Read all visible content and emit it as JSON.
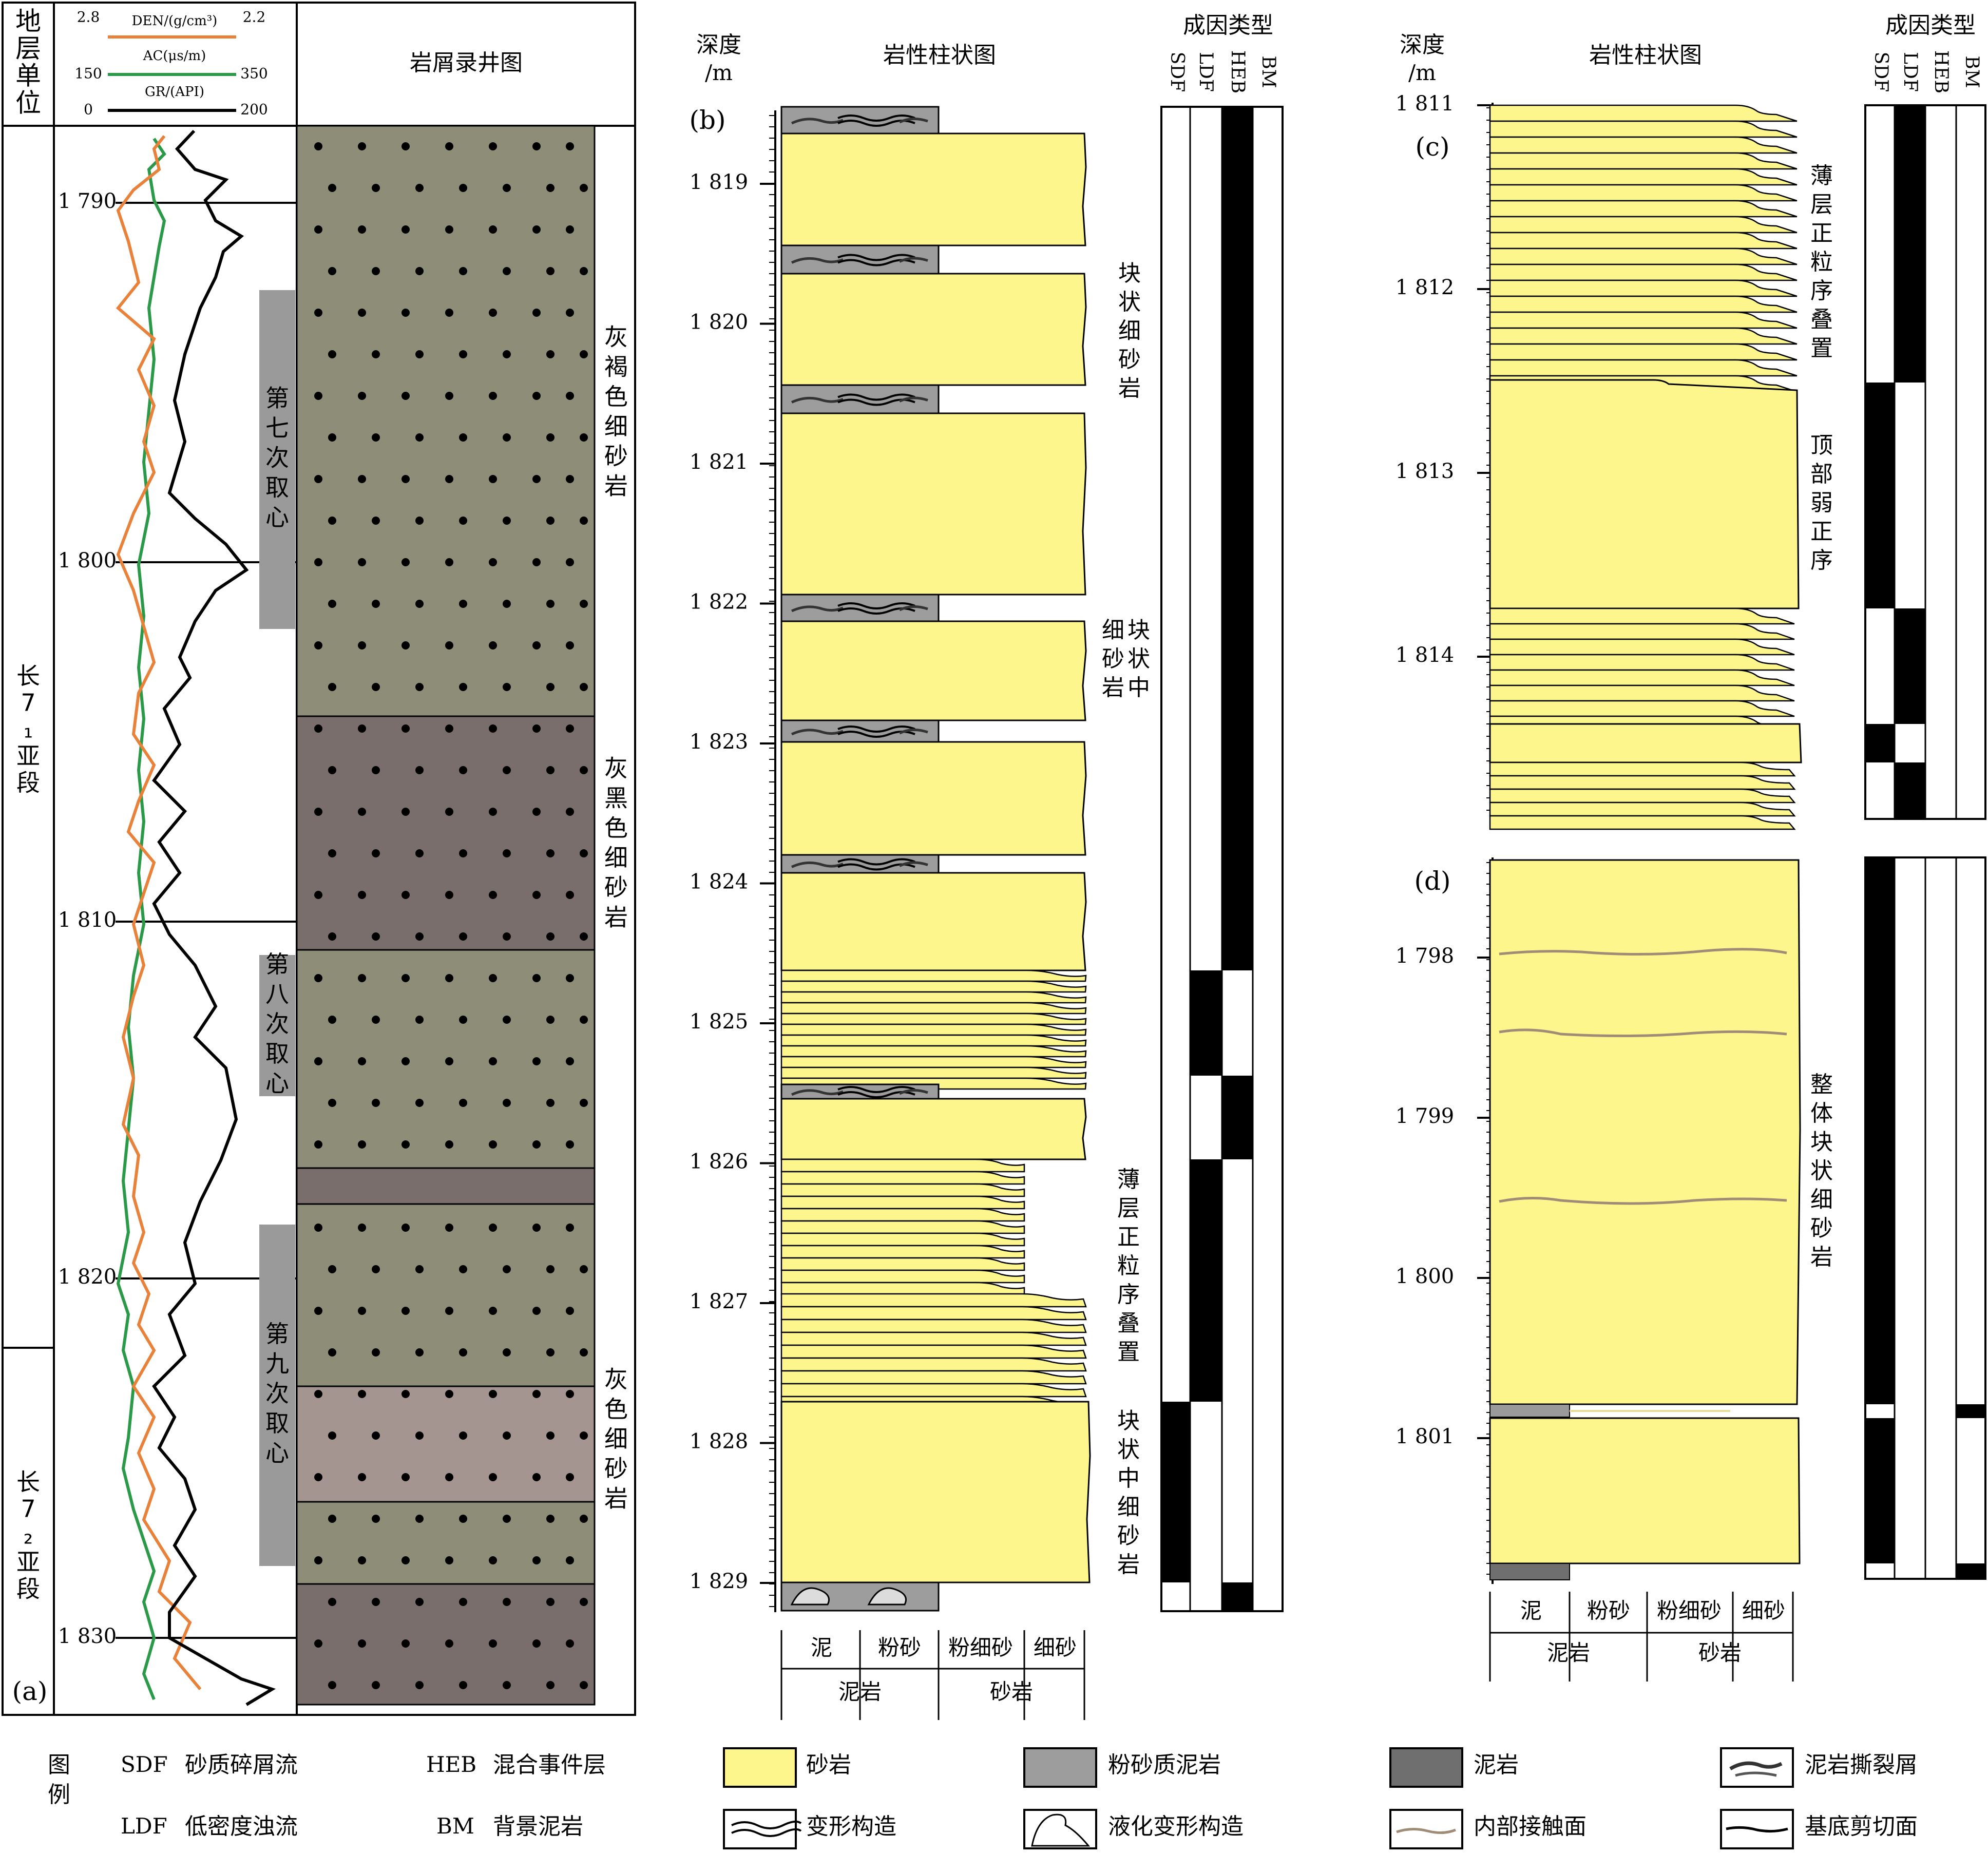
{
  "panel_a": {
    "header": {
      "strat_unit": "地层单位",
      "den_label": "DEN/(g/cm³)",
      "den_min": "2.8",
      "den_max": "2.2",
      "ac_label": "AC(μs/m)",
      "ac_min": "150",
      "ac_max": "350",
      "gr_label": "GR/(API)",
      "gr_min": "0",
      "gr_max": "200",
      "cuttings_title": "岩屑录井图"
    },
    "units": [
      "长7₁亚段",
      "长7₂亚段"
    ],
    "depth_ticks": [
      "1 790",
      "1 800",
      "1 810",
      "1 820",
      "1 830"
    ],
    "cores": [
      "第七次取心",
      "第八次取心",
      "第九次取心"
    ],
    "lithology_labels": [
      "灰褐色细砂岩",
      "灰黑色细砂岩",
      "灰色细砂岩"
    ],
    "panel_label": "(a)",
    "colors": {
      "den": "#e8823a",
      "ac": "#2a9a48",
      "gr": "#000000",
      "olive": "#8d8d78",
      "dark": "#7a6e6c",
      "mauve": "#a59590"
    }
  },
  "panel_b": {
    "depth_header": "深度",
    "depth_unit": "/m",
    "title": "岩性柱状图",
    "genesis_title": "成因类型",
    "genesis_cols": [
      "SDF",
      "LDF",
      "HEB",
      "BM"
    ],
    "label": "(b)",
    "depth_ticks": [
      "1 819",
      "1 820",
      "1 821",
      "1 822",
      "1 823",
      "1 824",
      "1 825",
      "1 826",
      "1 827",
      "1 828",
      "1 829"
    ],
    "annotations": [
      "块状细砂岩",
      "块状中细砂岩",
      "薄层正粒序叠置",
      "块状中细砂岩"
    ],
    "grain_labels": [
      "泥",
      "粉砂",
      "粉细砂",
      "细砂"
    ],
    "group_labels": [
      "泥岩",
      "砂岩"
    ]
  },
  "panel_c": {
    "depth_header": "深度",
    "depth_unit": "/m",
    "title": "岩性柱状图",
    "genesis_title": "成因类型",
    "genesis_cols": [
      "SDF",
      "LDF",
      "HEB",
      "BM"
    ],
    "label": "(c)",
    "depth_ticks": [
      "1 811",
      "1 812",
      "1 813",
      "1 814"
    ],
    "annotations": [
      "薄层正粒序叠置",
      "顶部弱正序"
    ]
  },
  "panel_d": {
    "label": "(d)",
    "depth_ticks": [
      "1 798",
      "1 799",
      "1 800",
      "1 801"
    ],
    "annotations": [
      "整体块状细砂岩"
    ],
    "grain_labels": [
      "泥",
      "粉砂",
      "粉细砂",
      "细砂"
    ],
    "group_labels": [
      "泥岩",
      "砂岩"
    ]
  },
  "legend": {
    "title": "图例",
    "abbr": [
      {
        "code": "SDF",
        "text": "砂质碎屑流"
      },
      {
        "code": "HEB",
        "text": "混合事件层"
      },
      {
        "code": "LDF",
        "text": "低密度浊流"
      },
      {
        "code": "BM",
        "text": "背景泥岩"
      }
    ],
    "symbols": [
      "砂岩",
      "粉砂质泥岩",
      "泥岩",
      "泥岩撕裂屑",
      "变形构造",
      "液化变形构造",
      "内部接触面",
      "基底剪切面"
    ],
    "colors": {
      "sandstone": "#fdf68c",
      "silty_mudstone": "#9d9d9d",
      "mudstone": "#6f6f6f",
      "contact": "#a08b77"
    }
  }
}
